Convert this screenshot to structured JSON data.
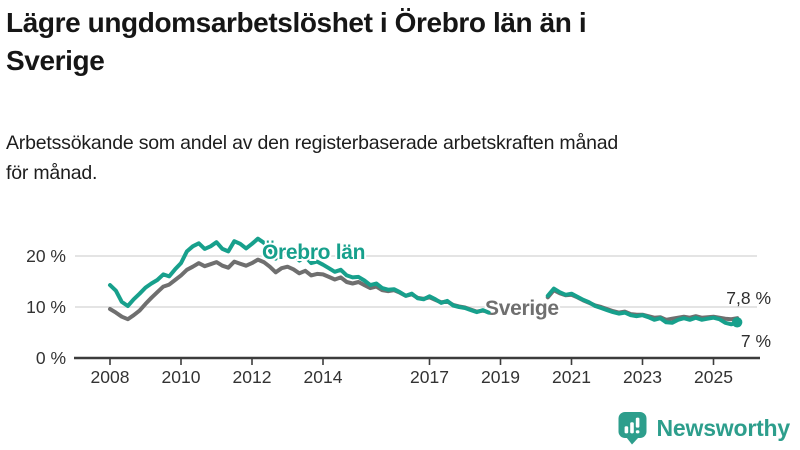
{
  "header": {
    "title_line1": "Lägre ungdomsarbetslöshet i Örebro län än i",
    "title_line2": "Sverige",
    "subtitle_line1": "Arbetssökande som andel av den registerbaserade arbetskraften månad",
    "subtitle_line2": "för månad."
  },
  "chart_data": {
    "type": "line",
    "title": "Lägre ungdomsarbetslöshet i Örebro län än i Sverige",
    "subtitle": "Arbetssökande som andel av den registerbaserade arbetskraften månad för månad.",
    "unit": "%",
    "grid": "horizontal",
    "x_start": 2008,
    "points_per_year": 6,
    "x_end": 2025.67,
    "x_ticks": [
      2008,
      2010,
      2012,
      2014,
      2017,
      2019,
      2021,
      2023,
      2025
    ],
    "y_ticks": [
      {
        "value": 0,
        "label": "0 %"
      },
      {
        "value": 10,
        "label": "10 %"
      },
      {
        "value": 20,
        "label": "20 %"
      }
    ],
    "ylim": [
      0,
      25
    ],
    "data_gap_note": "no line drawn between late 2018 and spring 2020",
    "series": [
      {
        "name": "Sverige",
        "slug": "sverige",
        "color": "#6F6F6F",
        "end_label": "7,8 %",
        "end_value": 7.8,
        "end_dot": false,
        "values": [
          9.6,
          8.9,
          8.1,
          7.6,
          8.4,
          9.3,
          10.6,
          11.8,
          12.9,
          14.0,
          14.4,
          15.3,
          16.2,
          17.3,
          17.9,
          18.6,
          18.0,
          18.4,
          18.8,
          18.1,
          17.7,
          18.9,
          18.5,
          18.1,
          18.6,
          19.3,
          18.8,
          17.9,
          16.8,
          17.6,
          17.9,
          17.4,
          16.6,
          17.1,
          16.2,
          16.5,
          16.4,
          15.9,
          15.4,
          15.8,
          14.9,
          14.6,
          14.9,
          14.3,
          13.7,
          14.0,
          13.3,
          13.1,
          13.3,
          12.8,
          12.2,
          12.5,
          11.8,
          11.6,
          11.9,
          11.4,
          10.9,
          11.1,
          10.4,
          10.1,
          9.9,
          9.5,
          9.1,
          9.3,
          9.0,
          null,
          null,
          null,
          null,
          null,
          null,
          null,
          null,
          null,
          11.9,
          13.3,
          12.7,
          12.3,
          12.4,
          11.9,
          11.3,
          10.8,
          10.3,
          10.0,
          9.6,
          9.2,
          8.9,
          9.1,
          8.6,
          8.5,
          8.5,
          8.2,
          7.9,
          8.0,
          7.5,
          7.7,
          7.9,
          8.1,
          7.9,
          8.2,
          7.9,
          8.0,
          8.1,
          7.9,
          7.7,
          7.6,
          7.8
        ]
      },
      {
        "name": "Örebro län",
        "slug": "orebro-lan",
        "color": "#17A08C",
        "end_label": "7 %",
        "end_value": 7.0,
        "end_dot": true,
        "values": [
          14.3,
          13.2,
          11.0,
          10.2,
          11.5,
          12.6,
          13.8,
          14.6,
          15.3,
          16.4,
          16.0,
          17.4,
          18.6,
          20.9,
          21.9,
          22.5,
          21.4,
          21.9,
          22.7,
          21.4,
          20.9,
          22.9,
          22.4,
          21.5,
          22.4,
          23.4,
          22.6,
          21.1,
          19.5,
          20.9,
          21.2,
          20.4,
          19.1,
          19.9,
          18.6,
          18.9,
          18.3,
          17.6,
          16.9,
          17.3,
          16.2,
          15.8,
          15.9,
          15.2,
          14.3,
          14.6,
          13.7,
          13.4,
          13.5,
          12.9,
          12.2,
          12.6,
          11.7,
          11.5,
          12.1,
          11.5,
          10.8,
          11.2,
          10.3,
          10.0,
          9.8,
          9.4,
          9.0,
          9.4,
          8.9,
          null,
          null,
          null,
          null,
          null,
          null,
          null,
          null,
          null,
          12.2,
          13.6,
          12.9,
          12.4,
          12.6,
          12.0,
          11.4,
          10.9,
          10.2,
          9.8,
          9.4,
          9.0,
          8.7,
          8.9,
          8.4,
          8.2,
          8.4,
          8.0,
          7.5,
          7.8,
          7.0,
          6.9,
          7.5,
          7.8,
          7.5,
          7.9,
          7.5,
          7.7,
          7.9,
          7.6,
          6.9,
          6.6,
          7.0
        ]
      }
    ],
    "legend_position": "inline-labels",
    "colors": {
      "gridline": "#dcdcdc",
      "axis": "#3c3c3c",
      "tick_text": "#333333",
      "end_label_text": "#2e2e2e"
    }
  },
  "footer": {
    "brand": "Newsworthy",
    "brand_color": "#2D9E8C",
    "logo_icon": "bar-chart-speech-bubble"
  }
}
